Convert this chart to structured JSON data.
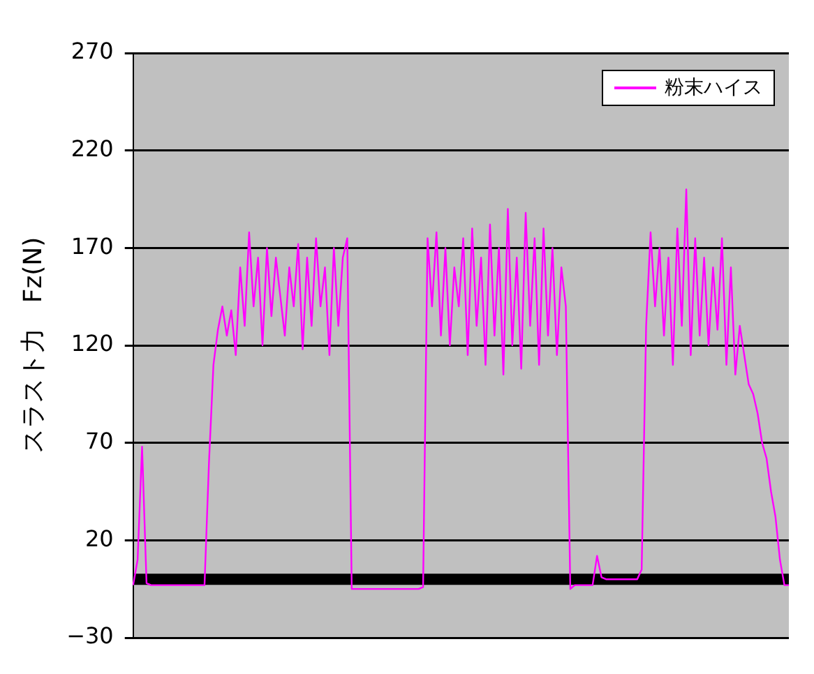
{
  "chart_data": {
    "type": "line",
    "ylabel": "スラスト力　Fz(N)",
    "categories": [
      null,
      null,
      null,
      null,
      null,
      null,
      null,
      null,
      null,
      null,
      null,
      null,
      null,
      null,
      null,
      null,
      null,
      null,
      null,
      null,
      null,
      null,
      null,
      null,
      null,
      null,
      null,
      null,
      null,
      null,
      null,
      null,
      null,
      null,
      null,
      null,
      null,
      null,
      null,
      null,
      null,
      null,
      null,
      null,
      null,
      null,
      null,
      null,
      null,
      null,
      null,
      null,
      null,
      null,
      null,
      null,
      null,
      null,
      null,
      null,
      null,
      null,
      null,
      null,
      null,
      null,
      null,
      null,
      null,
      null,
      null,
      null,
      null,
      null,
      null,
      null,
      null,
      null,
      null,
      null,
      null,
      null,
      null,
      null,
      null,
      null,
      null,
      null,
      null,
      null,
      null,
      null,
      null,
      null,
      null,
      null,
      null,
      null,
      null,
      null,
      null,
      null,
      null,
      null,
      null,
      null,
      null,
      null,
      null,
      null,
      null,
      null,
      null,
      null,
      null,
      null,
      null,
      null,
      null,
      null,
      null,
      null,
      null,
      null,
      null,
      null,
      null,
      null,
      null,
      null,
      null,
      null,
      null,
      null,
      null,
      null,
      null,
      null,
      null,
      null,
      null,
      null,
      null,
      null,
      null,
      null,
      null,
      null
    ],
    "series": [
      {
        "name": "粉末ハイス",
        "color": "#ff00ff",
        "values": [
          -3,
          10,
          68,
          -2,
          -3,
          -3,
          -3,
          -3,
          -3,
          -3,
          -3,
          -3,
          -3,
          -3,
          -3,
          -3,
          -3,
          60,
          110,
          128,
          140,
          125,
          138,
          115,
          160,
          130,
          178,
          140,
          165,
          120,
          170,
          135,
          165,
          145,
          125,
          160,
          140,
          172,
          118,
          165,
          130,
          175,
          140,
          160,
          115,
          170,
          130,
          165,
          175,
          -5,
          -5,
          -5,
          -5,
          -5,
          -5,
          -5,
          -5,
          -5,
          -5,
          -5,
          -5,
          -5,
          -5,
          -5,
          -5,
          -4,
          175,
          140,
          178,
          125,
          170,
          120,
          160,
          140,
          175,
          115,
          180,
          130,
          165,
          110,
          182,
          125,
          170,
          105,
          190,
          120,
          165,
          108,
          188,
          130,
          175,
          110,
          180,
          125,
          170,
          115,
          160,
          140,
          -5,
          -3,
          -3,
          -3,
          -3,
          -3,
          12,
          1,
          0,
          0,
          0,
          0,
          0,
          0,
          0,
          0,
          5,
          130,
          178,
          140,
          170,
          125,
          165,
          110,
          180,
          130,
          200,
          115,
          175,
          125,
          165,
          120,
          160,
          128,
          175,
          110,
          160,
          105,
          130,
          115,
          100,
          95,
          85,
          70,
          62,
          45,
          32,
          10,
          -3,
          -3
        ]
      }
    ],
    "ylim": [
      -30,
      270
    ],
    "yticks": [
      -30,
      20,
      70,
      120,
      170,
      220,
      270
    ],
    "grid": "y",
    "legend": "top right",
    "tick_labels": "y",
    "marker": "none",
    "line_style": "solid",
    "ref_lines": [
      {
        "axis": "y",
        "value": 0,
        "color": "#000000"
      }
    ]
  }
}
